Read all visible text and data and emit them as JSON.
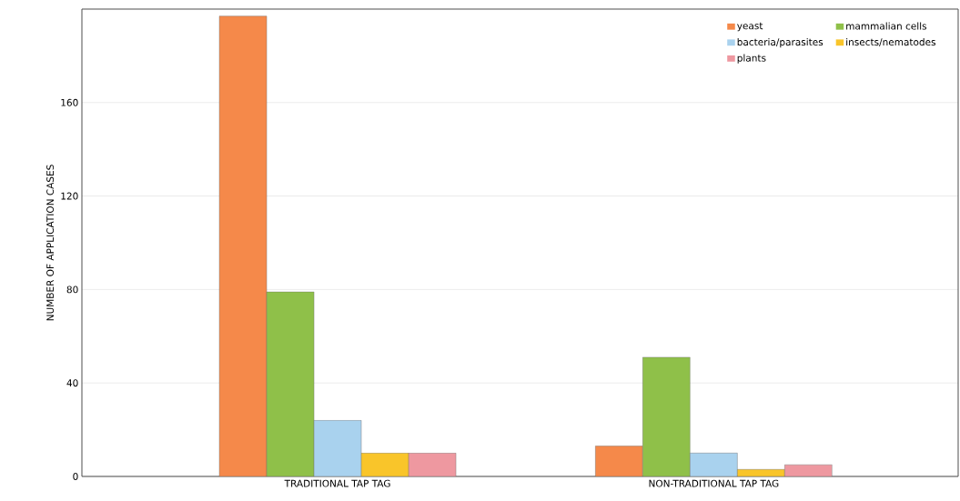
{
  "chart_data": {
    "type": "bar",
    "ylabel": "NUMBER OF APPLICATION CASES",
    "categories": [
      "TRADITIONAL TAP TAG",
      "NON-TRADITIONAL TAP TAG"
    ],
    "series": [
      {
        "name": "yeast",
        "color": "#f5894a",
        "values": [
          197,
          13
        ]
      },
      {
        "name": "mammalian cells",
        "color": "#8fc049",
        "values": [
          79,
          51
        ]
      },
      {
        "name": "bacteria/parasites",
        "color": "#a9d2ee",
        "values": [
          24,
          10
        ]
      },
      {
        "name": "insects/nematodes",
        "color": "#f9c52a",
        "values": [
          10,
          3
        ]
      },
      {
        "name": "plants",
        "color": "#ee98a0",
        "values": [
          10,
          5
        ]
      }
    ],
    "ylim": [
      0,
      200
    ],
    "yticks": [
      0,
      40,
      80,
      120,
      160
    ],
    "grid": "y",
    "legend": "top right"
  }
}
